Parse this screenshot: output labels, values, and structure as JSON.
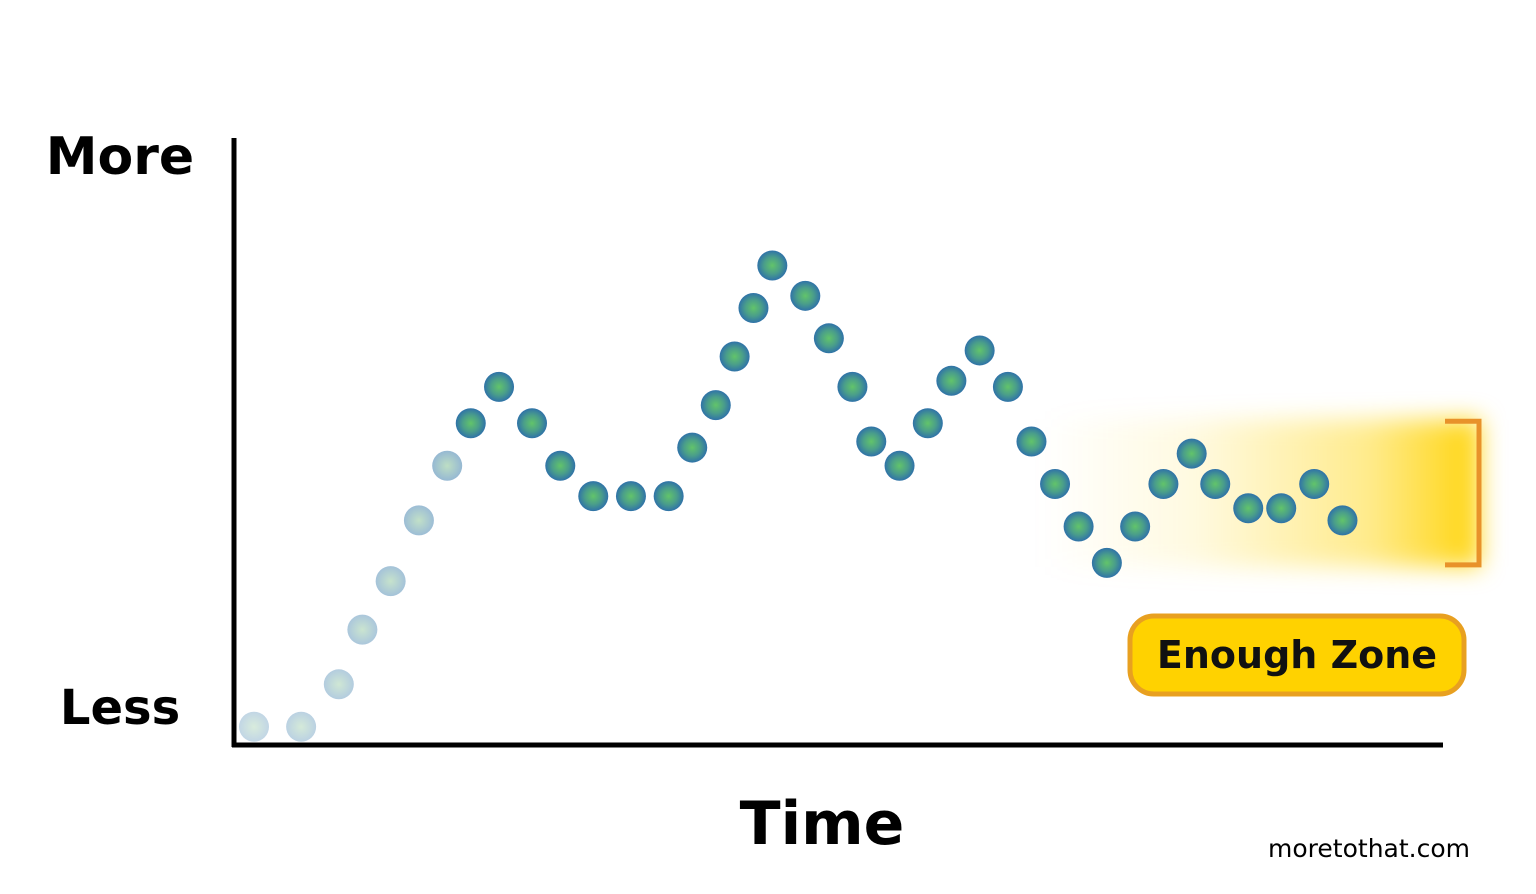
{
  "chart_data": {
    "type": "scatter",
    "title": "",
    "xlabel": "Time",
    "ylabel_top": "More",
    "ylabel_bottom": "Less",
    "ylim": [
      0,
      10
    ],
    "xlim": [
      0,
      25
    ],
    "grid": false,
    "annotation": "Enough Zone",
    "annotation_range": [
      3.0,
      5.3
    ],
    "points": [
      {
        "x": 0.0,
        "y": 0.3
      },
      {
        "x": 1.0,
        "y": 0.3
      },
      {
        "x": 1.8,
        "y": 1.0
      },
      {
        "x": 2.3,
        "y": 1.9
      },
      {
        "x": 2.9,
        "y": 2.7
      },
      {
        "x": 3.5,
        "y": 3.7
      },
      {
        "x": 4.1,
        "y": 4.6
      },
      {
        "x": 4.6,
        "y": 5.3
      },
      {
        "x": 5.2,
        "y": 5.9
      },
      {
        "x": 5.9,
        "y": 5.3
      },
      {
        "x": 6.5,
        "y": 4.6
      },
      {
        "x": 7.2,
        "y": 4.1
      },
      {
        "x": 8.0,
        "y": 4.1
      },
      {
        "x": 8.8,
        "y": 4.1
      },
      {
        "x": 9.3,
        "y": 4.9
      },
      {
        "x": 9.8,
        "y": 5.6
      },
      {
        "x": 10.2,
        "y": 6.4
      },
      {
        "x": 10.6,
        "y": 7.2
      },
      {
        "x": 11.0,
        "y": 7.9
      },
      {
        "x": 11.7,
        "y": 7.4
      },
      {
        "x": 12.2,
        "y": 6.7
      },
      {
        "x": 12.7,
        "y": 5.9
      },
      {
        "x": 13.1,
        "y": 5.0
      },
      {
        "x": 13.7,
        "y": 4.6
      },
      {
        "x": 14.3,
        "y": 5.3
      },
      {
        "x": 14.8,
        "y": 6.0
      },
      {
        "x": 15.4,
        "y": 6.5
      },
      {
        "x": 16.0,
        "y": 5.9
      },
      {
        "x": 16.5,
        "y": 5.0
      },
      {
        "x": 17.0,
        "y": 4.3
      },
      {
        "x": 17.5,
        "y": 3.6
      },
      {
        "x": 18.1,
        "y": 3.0
      },
      {
        "x": 18.7,
        "y": 3.6
      },
      {
        "x": 19.3,
        "y": 4.3
      },
      {
        "x": 19.9,
        "y": 4.8
      },
      {
        "x": 20.4,
        "y": 4.3
      },
      {
        "x": 21.1,
        "y": 3.9
      },
      {
        "x": 21.8,
        "y": 3.9
      },
      {
        "x": 22.5,
        "y": 4.3
      },
      {
        "x": 23.1,
        "y": 3.7
      }
    ]
  },
  "credit": "moretothat.com",
  "colors": {
    "axis": "#000000",
    "dot_center": "#62c46a",
    "dot_edge": "#2f72a8",
    "zone_fill": "#ffd200",
    "zone_border": "#e8a020",
    "bracket": "#e8922a"
  }
}
